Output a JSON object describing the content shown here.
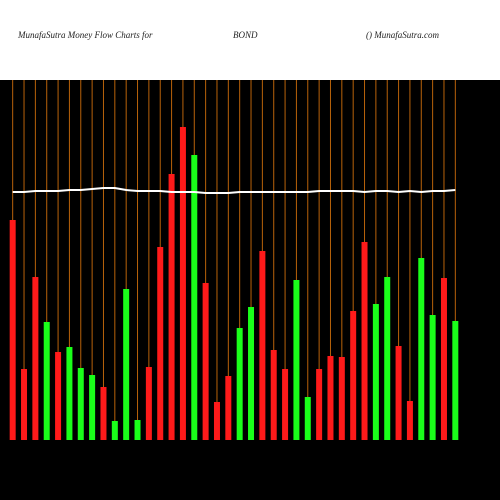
{
  "chart_data": {
    "type": "bar",
    "title": "MunafaSutra  Money Flow  Charts for",
    "symbol": "BOND",
    "site": "() MunafaSutra.com",
    "ylim": [
      0,
      360
    ],
    "values": [
      220,
      71,
      163,
      118,
      88,
      93,
      72,
      65,
      53,
      19,
      151,
      20,
      73,
      193,
      266,
      313,
      285,
      157,
      38,
      64,
      112,
      133,
      189,
      90,
      71,
      160,
      43,
      71,
      84,
      83,
      129,
      198,
      136,
      163,
      94,
      39,
      182,
      125,
      162,
      119
    ],
    "colors": [
      "red",
      "red",
      "red",
      "green",
      "red",
      "green",
      "green",
      "green",
      "red",
      "green",
      "green",
      "green",
      "red",
      "red",
      "red",
      "red",
      "green",
      "red",
      "red",
      "red",
      "green",
      "green",
      "red",
      "red",
      "red",
      "green",
      "green",
      "red",
      "red",
      "red",
      "red",
      "red",
      "green",
      "green",
      "red",
      "red",
      "green",
      "green",
      "red",
      "green"
    ],
    "line": {
      "color": "#ffffff",
      "values": [
        248,
        248,
        249,
        249,
        249,
        250,
        250,
        251,
        252,
        252,
        250,
        249,
        249,
        249,
        248,
        248,
        248,
        247,
        247,
        247,
        248,
        248,
        248,
        248,
        248,
        248,
        248,
        249,
        249,
        249,
        249,
        248,
        249,
        249,
        248,
        249,
        248,
        249,
        249,
        250
      ]
    },
    "gridline_color": "#b8620a",
    "background": "#000000"
  }
}
